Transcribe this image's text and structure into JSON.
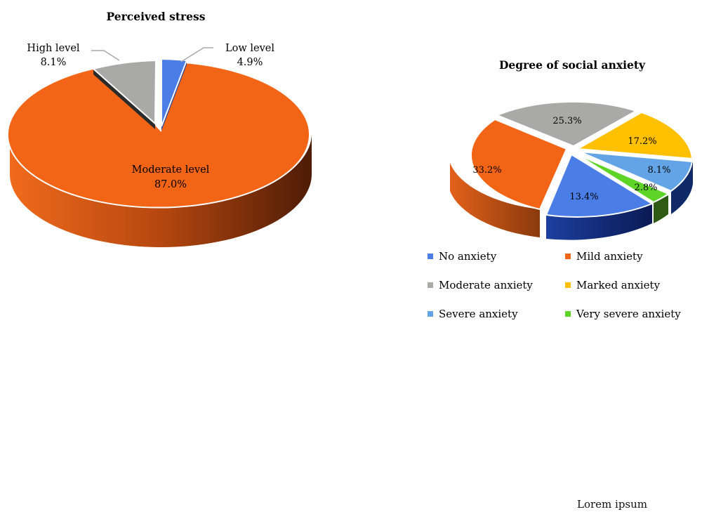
{
  "chart_data": [
    {
      "type": "pie",
      "title": "Perceived stress",
      "slices": [
        {
          "label": "Low level",
          "value": 4.9,
          "display": "4.9%",
          "color": "#4472C4"
        },
        {
          "label": "Moderate level",
          "value": 87.0,
          "display": "87.0%",
          "color": "#ED7D31"
        },
        {
          "label": "High level",
          "value": 8.1,
          "display": "8.1%",
          "color": "#A5A5A5"
        }
      ]
    },
    {
      "type": "pie",
      "title": "Degree of social anxiety",
      "legend": "bottom",
      "slices": [
        {
          "label": "No anxiety",
          "value": 13.4,
          "display": "13.4%",
          "color": "#4472C4"
        },
        {
          "label": "Mild anxiety",
          "value": 33.2,
          "display": "33.2%",
          "color": "#ED7D31"
        },
        {
          "label": "Moderate anxiety",
          "value": 25.3,
          "display": "25.3%",
          "color": "#A5A5A5"
        },
        {
          "label": "Marked anxiety",
          "value": 17.2,
          "display": "17.2%",
          "color": "#FFC000"
        },
        {
          "label": "Severe anxiety",
          "value": 8.1,
          "display": "8.1%",
          "color": "#5B9BD5"
        },
        {
          "label": "Very severe anxiety",
          "value": 2.8,
          "display": "2.8%",
          "color": "#70AD47"
        }
      ]
    }
  ],
  "footer": "Lorem ipsum"
}
